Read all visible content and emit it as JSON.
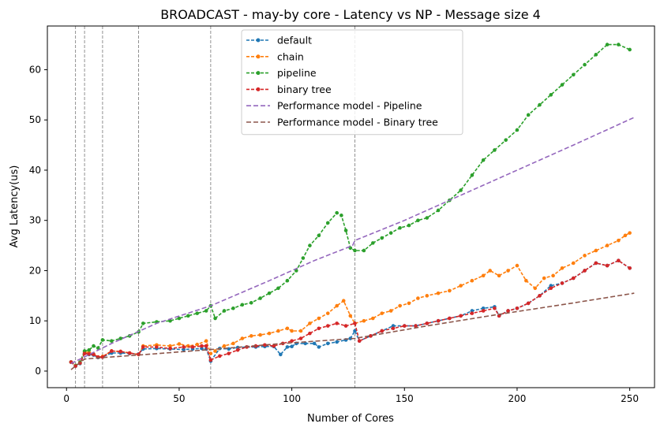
{
  "chart_data": {
    "type": "line",
    "title": "BROADCAST - may-by core - Latency vs NP - Message size 4",
    "xlabel": "Number of Cores",
    "ylabel": "Avg Latency(us)",
    "xlim": [
      -8.5,
      261
    ],
    "ylim": [
      -3.3,
      68.7
    ],
    "xticks": [
      0,
      50,
      100,
      150,
      200,
      250
    ],
    "yticks": [
      0,
      10,
      20,
      30,
      40,
      50,
      60
    ],
    "grid": false,
    "legend_position": "top-center",
    "vlines": [
      4,
      8,
      16,
      32,
      64,
      128
    ],
    "series": [
      {
        "name": "default",
        "color": "#1f77b4",
        "style": "dashed-dots",
        "points": [
          [
            2,
            1.8
          ],
          [
            4,
            1.0
          ],
          [
            6,
            1.5
          ],
          [
            8,
            3.5
          ],
          [
            10,
            3.3
          ],
          [
            12,
            3.2
          ],
          [
            14,
            2.7
          ],
          [
            16,
            2.8
          ],
          [
            20,
            3.6
          ],
          [
            24,
            3.6
          ],
          [
            28,
            3.5
          ],
          [
            32,
            3.4
          ],
          [
            34,
            4.4
          ],
          [
            40,
            4.5
          ],
          [
            46,
            4.4
          ],
          [
            52,
            4.3
          ],
          [
            56,
            4.4
          ],
          [
            60,
            4.5
          ],
          [
            62,
            4.4
          ],
          [
            64,
            2.0
          ],
          [
            68,
            4.5
          ],
          [
            72,
            4.4
          ],
          [
            76,
            4.7
          ],
          [
            80,
            4.8
          ],
          [
            84,
            4.8
          ],
          [
            88,
            4.9
          ],
          [
            92,
            4.9
          ],
          [
            95,
            3.3
          ],
          [
            98,
            4.8
          ],
          [
            100,
            4.9
          ],
          [
            102,
            5.5
          ],
          [
            106,
            5.5
          ],
          [
            110,
            5.5
          ],
          [
            112,
            4.8
          ],
          [
            116,
            5.5
          ],
          [
            120,
            5.8
          ],
          [
            124,
            6.2
          ],
          [
            126,
            6.5
          ],
          [
            128,
            8.0
          ],
          [
            130,
            6.0
          ],
          [
            135,
            7.0
          ],
          [
            140,
            8.0
          ],
          [
            145,
            9.0
          ],
          [
            150,
            9.0
          ],
          [
            155,
            9.0
          ],
          [
            160,
            9.5
          ],
          [
            165,
            10.0
          ],
          [
            170,
            10.5
          ],
          [
            175,
            11.0
          ],
          [
            180,
            12.0
          ],
          [
            185,
            12.5
          ],
          [
            190,
            12.8
          ],
          [
            192,
            11.0
          ],
          [
            196,
            12.0
          ],
          [
            200,
            12.5
          ],
          [
            205,
            13.5
          ],
          [
            210,
            15.0
          ],
          [
            215,
            17.0
          ],
          [
            220,
            17.5
          ],
          [
            225,
            18.5
          ],
          [
            230,
            20.0
          ],
          [
            235,
            21.5
          ],
          [
            240,
            21.0
          ],
          [
            245,
            22.0
          ],
          [
            250,
            20.5
          ]
        ]
      },
      {
        "name": "chain",
        "color": "#ff7f0e",
        "style": "dashed-dots",
        "points": [
          [
            2,
            1.8
          ],
          [
            4,
            1.1
          ],
          [
            6,
            1.6
          ],
          [
            8,
            3.8
          ],
          [
            10,
            3.7
          ],
          [
            12,
            3.4
          ],
          [
            14,
            2.8
          ],
          [
            16,
            2.9
          ],
          [
            20,
            4.0
          ],
          [
            24,
            3.9
          ],
          [
            28,
            3.6
          ],
          [
            32,
            3.3
          ],
          [
            34,
            5.0
          ],
          [
            40,
            5.2
          ],
          [
            46,
            5.0
          ],
          [
            50,
            5.4
          ],
          [
            54,
            5.0
          ],
          [
            58,
            5.3
          ],
          [
            62,
            6.0
          ],
          [
            64,
            3.5
          ],
          [
            66,
            4.0
          ],
          [
            70,
            5.0
          ],
          [
            74,
            5.5
          ],
          [
            78,
            6.5
          ],
          [
            82,
            7.0
          ],
          [
            86,
            7.2
          ],
          [
            90,
            7.5
          ],
          [
            94,
            8.0
          ],
          [
            98,
            8.5
          ],
          [
            100,
            8.0
          ],
          [
            104,
            8.0
          ],
          [
            108,
            9.5
          ],
          [
            112,
            10.5
          ],
          [
            116,
            11.5
          ],
          [
            120,
            13.0
          ],
          [
            123,
            14.0
          ],
          [
            126,
            11.0
          ],
          [
            128,
            9.5
          ],
          [
            132,
            10.0
          ],
          [
            136,
            10.5
          ],
          [
            140,
            11.5
          ],
          [
            144,
            12.0
          ],
          [
            148,
            13.0
          ],
          [
            152,
            13.5
          ],
          [
            156,
            14.5
          ],
          [
            160,
            15.0
          ],
          [
            165,
            15.5
          ],
          [
            170,
            16.0
          ],
          [
            175,
            17.0
          ],
          [
            180,
            18.0
          ],
          [
            185,
            19.0
          ],
          [
            188,
            20.0
          ],
          [
            192,
            19.0
          ],
          [
            196,
            20.0
          ],
          [
            200,
            21.0
          ],
          [
            204,
            18.0
          ],
          [
            208,
            16.5
          ],
          [
            212,
            18.5
          ],
          [
            216,
            19.0
          ],
          [
            220,
            20.5
          ],
          [
            225,
            21.5
          ],
          [
            230,
            23.0
          ],
          [
            235,
            24.0
          ],
          [
            240,
            25.0
          ],
          [
            245,
            26.0
          ],
          [
            248,
            27.0
          ],
          [
            250,
            27.5
          ]
        ]
      },
      {
        "name": "pipeline",
        "color": "#2ca02c",
        "style": "dashed-dots",
        "points": [
          [
            2,
            1.8
          ],
          [
            4,
            1.1
          ],
          [
            6,
            1.8
          ],
          [
            8,
            4.0
          ],
          [
            10,
            4.2
          ],
          [
            12,
            5.0
          ],
          [
            14,
            4.6
          ],
          [
            16,
            6.2
          ],
          [
            20,
            6.0
          ],
          [
            24,
            6.5
          ],
          [
            28,
            7.0
          ],
          [
            32,
            7.8
          ],
          [
            34,
            9.5
          ],
          [
            40,
            9.8
          ],
          [
            46,
            10.0
          ],
          [
            50,
            10.5
          ],
          [
            54,
            11.0
          ],
          [
            58,
            11.5
          ],
          [
            62,
            12.0
          ],
          [
            64,
            13.0
          ],
          [
            66,
            10.5
          ],
          [
            70,
            12.0
          ],
          [
            74,
            12.5
          ],
          [
            78,
            13.2
          ],
          [
            82,
            13.6
          ],
          [
            86,
            14.5
          ],
          [
            90,
            15.5
          ],
          [
            94,
            16.5
          ],
          [
            98,
            18.0
          ],
          [
            102,
            20.0
          ],
          [
            105,
            22.5
          ],
          [
            108,
            25.0
          ],
          [
            112,
            27.0
          ],
          [
            116,
            29.5
          ],
          [
            120,
            31.5
          ],
          [
            122,
            31.0
          ],
          [
            124,
            28.0
          ],
          [
            126,
            24.5
          ],
          [
            128,
            24.0
          ],
          [
            132,
            24.0
          ],
          [
            136,
            25.5
          ],
          [
            140,
            26.5
          ],
          [
            144,
            27.5
          ],
          [
            148,
            28.5
          ],
          [
            152,
            29.0
          ],
          [
            156,
            30.0
          ],
          [
            160,
            30.5
          ],
          [
            165,
            32.0
          ],
          [
            170,
            34.0
          ],
          [
            175,
            36.0
          ],
          [
            180,
            39.0
          ],
          [
            185,
            42.0
          ],
          [
            190,
            44.0
          ],
          [
            195,
            46.0
          ],
          [
            200,
            48.0
          ],
          [
            205,
            51.0
          ],
          [
            210,
            53.0
          ],
          [
            215,
            55.0
          ],
          [
            220,
            57.0
          ],
          [
            225,
            59.0
          ],
          [
            230,
            61.0
          ],
          [
            235,
            63.0
          ],
          [
            240,
            65.0
          ],
          [
            245,
            65.0
          ],
          [
            250,
            64.0
          ]
        ]
      },
      {
        "name": "binary tree",
        "color": "#d62728",
        "style": "dashed-dots",
        "points": [
          [
            2,
            1.8
          ],
          [
            4,
            1.0
          ],
          [
            6,
            1.6
          ],
          [
            8,
            3.5
          ],
          [
            10,
            3.4
          ],
          [
            12,
            3.3
          ],
          [
            14,
            2.8
          ],
          [
            16,
            2.8
          ],
          [
            20,
            4.0
          ],
          [
            24,
            3.9
          ],
          [
            28,
            3.6
          ],
          [
            32,
            3.3
          ],
          [
            34,
            4.8
          ],
          [
            40,
            4.8
          ],
          [
            46,
            4.5
          ],
          [
            52,
            4.8
          ],
          [
            56,
            4.8
          ],
          [
            60,
            5.0
          ],
          [
            62,
            5.0
          ],
          [
            64,
            2.2
          ],
          [
            68,
            3.0
          ],
          [
            72,
            3.5
          ],
          [
            76,
            4.2
          ],
          [
            80,
            4.8
          ],
          [
            84,
            5.0
          ],
          [
            88,
            5.2
          ],
          [
            92,
            5.0
          ],
          [
            96,
            5.5
          ],
          [
            100,
            6.0
          ],
          [
            104,
            6.5
          ],
          [
            108,
            7.5
          ],
          [
            112,
            8.5
          ],
          [
            116,
            9.0
          ],
          [
            120,
            9.5
          ],
          [
            124,
            9.0
          ],
          [
            128,
            9.5
          ],
          [
            130,
            6.0
          ],
          [
            135,
            7.0
          ],
          [
            140,
            8.0
          ],
          [
            145,
            8.5
          ],
          [
            150,
            9.0
          ],
          [
            155,
            9.0
          ],
          [
            160,
            9.5
          ],
          [
            165,
            10.0
          ],
          [
            170,
            10.5
          ],
          [
            175,
            11.0
          ],
          [
            180,
            11.5
          ],
          [
            185,
            12.0
          ],
          [
            190,
            12.5
          ],
          [
            192,
            11.0
          ],
          [
            196,
            12.0
          ],
          [
            200,
            12.5
          ],
          [
            205,
            13.5
          ],
          [
            210,
            15.0
          ],
          [
            215,
            16.5
          ],
          [
            220,
            17.5
          ],
          [
            225,
            18.5
          ],
          [
            230,
            20.0
          ],
          [
            235,
            21.5
          ],
          [
            240,
            21.0
          ],
          [
            245,
            22.0
          ],
          [
            250,
            20.5
          ]
        ]
      },
      {
        "name": "Performance model - Pipeline",
        "color": "#9467bd",
        "style": "dashed",
        "points": [
          [
            2,
            1.5
          ],
          [
            20,
            5.5
          ],
          [
            40,
            9.5
          ],
          [
            64,
            13.0
          ],
          [
            90,
            18.0
          ],
          [
            110,
            22.0
          ],
          [
            127,
            25.0
          ],
          [
            128,
            26.0
          ],
          [
            150,
            30.0
          ],
          [
            175,
            35.0
          ],
          [
            200,
            40.0
          ],
          [
            225,
            45.0
          ],
          [
            252,
            50.5
          ]
        ]
      },
      {
        "name": "Performance model - Binary tree",
        "color": "#8c564b",
        "style": "dashed",
        "points": [
          [
            2,
            0.3
          ],
          [
            8,
            2.4
          ],
          [
            16,
            2.7
          ],
          [
            32,
            3.2
          ],
          [
            64,
            4.3
          ],
          [
            96,
            5.5
          ],
          [
            128,
            6.5
          ],
          [
            160,
            9.0
          ],
          [
            192,
            11.3
          ],
          [
            224,
            13.5
          ],
          [
            252,
            15.5
          ]
        ]
      }
    ]
  }
}
